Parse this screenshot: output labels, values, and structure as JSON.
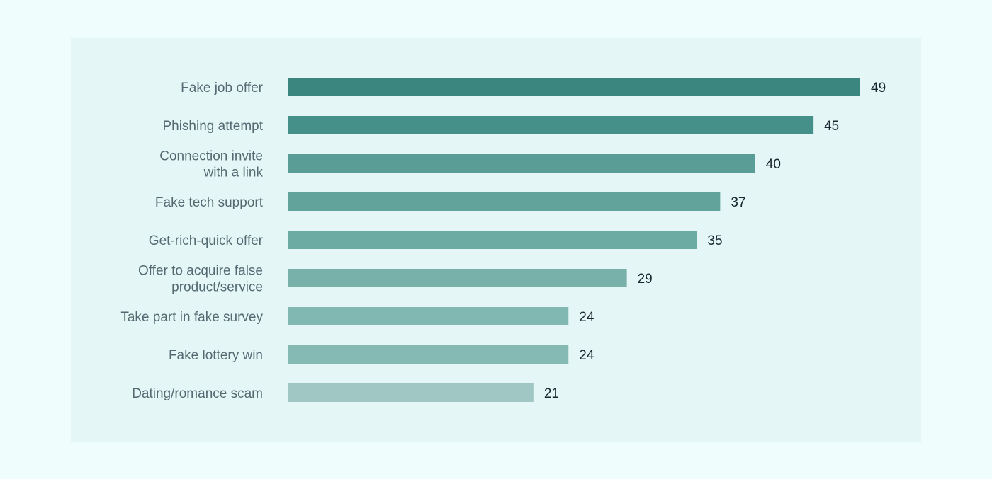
{
  "chart_data": {
    "type": "bar",
    "orientation": "horizontal",
    "categories": [
      [
        "Fake job offer"
      ],
      [
        "Phishing attempt"
      ],
      [
        "Connection invite",
        "with a link"
      ],
      [
        "Fake tech support"
      ],
      [
        "Get-rich-quick offer"
      ],
      [
        "Offer to acquire false",
        "product/service"
      ],
      [
        "Take part in fake survey"
      ],
      [
        "Fake lottery win"
      ],
      [
        "Dating/romance scam"
      ]
    ],
    "values": [
      49,
      45,
      40,
      37,
      35,
      29,
      24,
      24,
      21
    ],
    "value_labels": [
      "49",
      "45",
      "40",
      "37",
      "35",
      "29",
      "24",
      "24",
      "21"
    ],
    "bar_colors": [
      "#3b877f",
      "#46908a",
      "#5a9c96",
      "#62a39c",
      "#6caba4",
      "#78b0aa",
      "#82b8b2",
      "#85b9b3",
      "#a0c7c4"
    ],
    "xlim": [
      0,
      49
    ],
    "grid": false,
    "legend": "none"
  }
}
